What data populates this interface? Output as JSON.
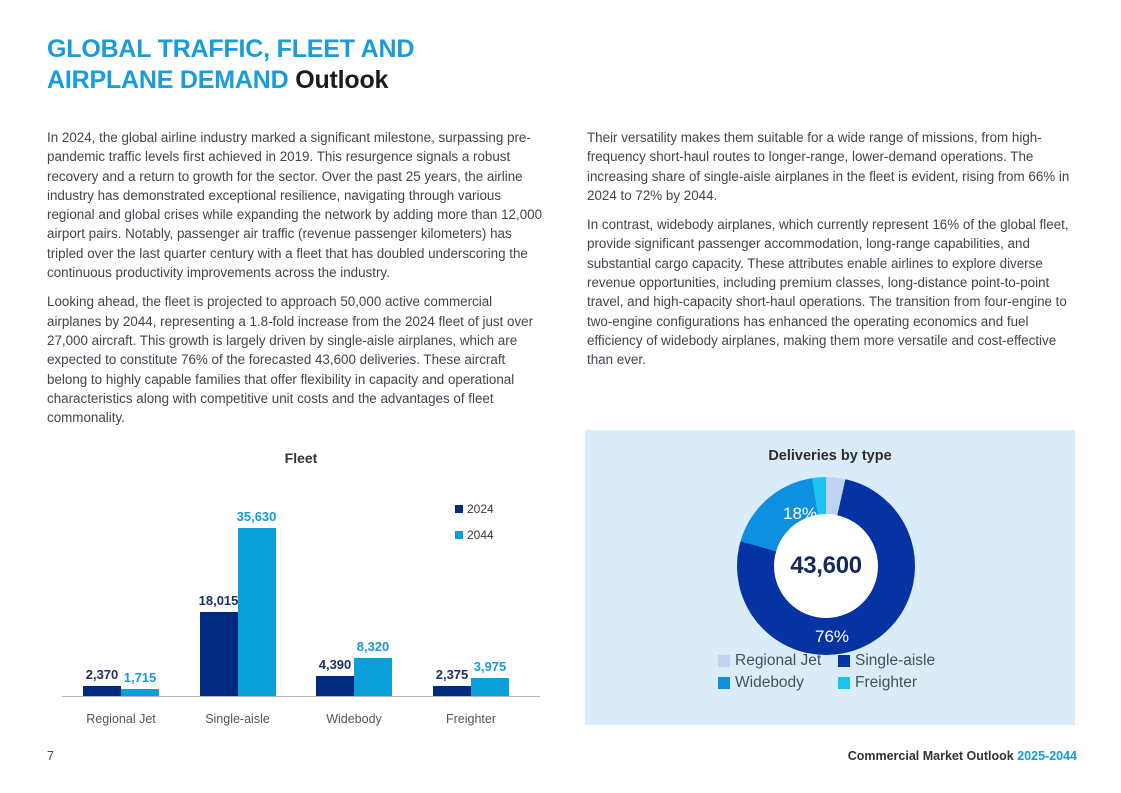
{
  "page": {
    "title": {
      "line1": "GLOBAL TRAFFIC, FLEET AND",
      "line2_accent": "AIRPLANE DEMAND",
      "line2_rest": " Outlook"
    },
    "footer": {
      "page_number": "7",
      "label": "Commercial Market Outlook ",
      "range": "2025-2044"
    }
  },
  "body": {
    "left_paragraphs": [
      "In 2024, the global airline industry marked a significant milestone, surpassing pre-pandemic traffic levels first achieved in 2019. This resurgence signals a robust recovery and a return to growth for the sector. Over the past 25 years, the airline industry has demonstrated exceptional resilience, navigating through various regional and global crises while expanding the network by adding more than 12,000 airport pairs. Notably, passenger air traffic (revenue passenger kilometers) has tripled over the last quarter century with a fleet that has doubled underscoring the continuous productivity improvements across the industry.",
      "Looking ahead, the fleet is projected to approach 50,000 active commercial airplanes by 2044, representing a 1.8-fold increase from the 2024 fleet of just over 27,000 aircraft. This growth is largely driven by single-aisle airplanes, which are expected to constitute 76% of the forecasted 43,600 deliveries. These aircraft belong to highly capable families that offer flexibility in capacity and operational characteristics along with competitive unit costs and the advantages of fleet commonality."
    ],
    "right_paragraphs": [
      "Their versatility makes them suitable for a wide range of missions, from high-frequency short-haul routes to longer-range, lower-demand operations. The increasing share of single-aisle airplanes in the fleet is evident, rising from 66% in 2024 to 72% by 2044.",
      "In contrast, widebody airplanes, which currently represent 16% of the global fleet, provide significant passenger accommodation, long-range capabilities, and substantial cargo capacity. These attributes enable airlines to explore diverse revenue opportunities, including premium classes, long-distance point-to-point travel, and high-capacity short-haul operations. The transition from four-engine to two-engine configurations has enhanced the operating economics and fuel efficiency of widebody airplanes, making them more versatile and cost-effective than ever."
    ]
  },
  "colors": {
    "accent_blue": "#189cdc",
    "panel_bg": "#d9ecf8",
    "bar_value_2024_label": "#1d3160",
    "bar_value_2044_label": "#1899d8"
  },
  "chart_data": [
    {
      "type": "bar",
      "title": "Fleet",
      "categories": [
        "Regional Jet",
        "Single-aisle",
        "Widebody",
        "Freighter"
      ],
      "series": [
        {
          "name": "2024",
          "color": "#00297f",
          "label_color": "#1d3160",
          "values": [
            2370,
            18015,
            4390,
            2375
          ]
        },
        {
          "name": "2044",
          "color": "#0b9fd9",
          "label_color": "#1899d8",
          "values": [
            1715,
            35630,
            8320,
            3975
          ]
        }
      ],
      "ylim": [
        0,
        38000
      ],
      "grid": false,
      "legend_position": "right"
    },
    {
      "type": "pie",
      "subtype": "donut",
      "title": "Deliveries by type",
      "center_label": "43,600",
      "total": 43600,
      "slices": [
        {
          "name": "Regional Jet",
          "pct": 3.5,
          "color": "#bfd2f4",
          "label": ""
        },
        {
          "name": "Single-aisle",
          "pct": 76,
          "color": "#0533a4",
          "label": "76%"
        },
        {
          "name": "Widebody",
          "pct": 18,
          "color": "#0d90e0",
          "label": "18%"
        },
        {
          "name": "Freighter",
          "pct": 2.5,
          "color": "#1ec3f2",
          "label": ""
        }
      ],
      "legend_position": "bottom"
    }
  ]
}
